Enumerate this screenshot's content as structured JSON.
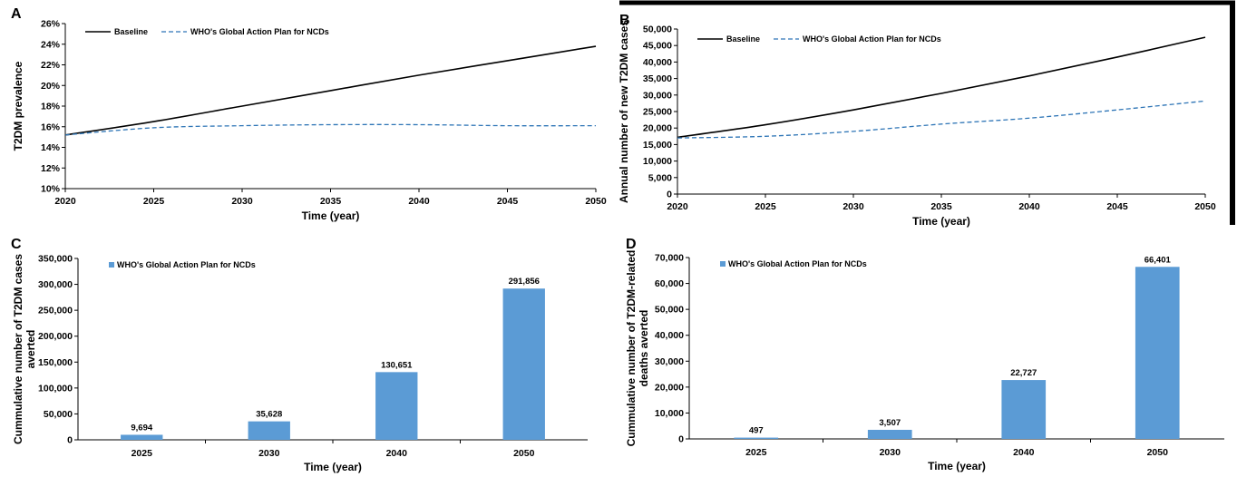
{
  "colors": {
    "baseline": "#000000",
    "who": "#2e75b6",
    "bar": "#5b9bd5"
  },
  "chart_data": [
    {
      "id": "A",
      "type": "line",
      "panel_label": "A",
      "xlabel": "Time (year)",
      "ylabel": "T2DM prevalence",
      "xlim": [
        2020,
        2050
      ],
      "ylim": [
        0.1,
        0.26
      ],
      "x_ticks": [
        "2020",
        "2025",
        "2030",
        "2035",
        "2040",
        "2045",
        "2050"
      ],
      "y_ticks": [
        "10%",
        "12%",
        "14%",
        "16%",
        "18%",
        "20%",
        "22%",
        "24%",
        "26%"
      ],
      "legend": [
        "Baseline",
        "WHO's Global Action Plan for NCDs"
      ],
      "legend_position": "top-left",
      "series": [
        {
          "name": "Baseline",
          "style": "solid",
          "x": [
            2020,
            2025,
            2030,
            2035,
            2040,
            2045,
            2050
          ],
          "y": [
            0.152,
            0.165,
            0.18,
            0.195,
            0.21,
            0.224,
            0.238
          ]
        },
        {
          "name": "WHO's Global Action Plan for NCDs",
          "style": "dashed",
          "x": [
            2020,
            2025,
            2030,
            2035,
            2040,
            2045,
            2050
          ],
          "y": [
            0.152,
            0.159,
            0.161,
            0.162,
            0.162,
            0.161,
            0.161
          ]
        }
      ]
    },
    {
      "id": "B",
      "type": "line",
      "panel_label": "B",
      "xlabel": "Time (year)",
      "ylabel": "Annual number of new T2DM cases",
      "xlim": [
        2020,
        2050
      ],
      "ylim": [
        0,
        50000
      ],
      "x_ticks": [
        "2020",
        "2025",
        "2030",
        "2035",
        "2040",
        "2045",
        "2050"
      ],
      "y_ticks": [
        "0",
        "5,000",
        "10,000",
        "15,000",
        "20,000",
        "25,000",
        "30,000",
        "35,000",
        "40,000",
        "45,000",
        "50,000"
      ],
      "legend": [
        "Baseline",
        "WHO's Global Action Plan for NCDs"
      ],
      "legend_position": "top-left",
      "series": [
        {
          "name": "Baseline",
          "style": "solid",
          "x": [
            2020,
            2025,
            2030,
            2035,
            2040,
            2045,
            2050
          ],
          "y": [
            17200,
            21000,
            25500,
            30500,
            35800,
            41500,
            47500
          ]
        },
        {
          "name": "WHO's Global Action Plan for NCDs",
          "style": "dashed",
          "x": [
            2020,
            2025,
            2030,
            2035,
            2040,
            2045,
            2050
          ],
          "y": [
            17000,
            17500,
            19000,
            21200,
            23000,
            25500,
            28200
          ]
        }
      ]
    },
    {
      "id": "C",
      "type": "bar",
      "panel_label": "C",
      "xlabel": "Time (year)",
      "ylabel_lines": [
        "Cummulative number of T2DM cases",
        "averted"
      ],
      "ylim": [
        0,
        350000
      ],
      "y_ticks": [
        "0",
        "50,000",
        "100,000",
        "150,000",
        "200,000",
        "250,000",
        "300,000",
        "350,000"
      ],
      "categories": [
        "2025",
        "2030",
        "2040",
        "2050"
      ],
      "legend": [
        "WHO's Global Action Plan for NCDs"
      ],
      "legend_position": "top-left",
      "series": [
        {
          "name": "WHO's Global Action Plan for NCDs",
          "values": [
            9694,
            35628,
            130651,
            291856
          ],
          "labels": [
            "9,694",
            "35,628",
            "130,651",
            "291,856"
          ]
        }
      ]
    },
    {
      "id": "D",
      "type": "bar",
      "panel_label": "D",
      "xlabel": "Time (year)",
      "ylabel_lines": [
        "Cummulative number  of T2DM-related",
        "deaths averted"
      ],
      "ylim": [
        0,
        70000
      ],
      "y_ticks": [
        "0",
        "10,000",
        "20,000",
        "30,000",
        "40,000",
        "50,000",
        "60,000",
        "70,000"
      ],
      "categories": [
        "2025",
        "2030",
        "2040",
        "2050"
      ],
      "legend": [
        "WHO's Global Action Plan for NCDs"
      ],
      "legend_position": "top-left",
      "series": [
        {
          "name": "WHO's Global Action Plan for NCDs",
          "values": [
            497,
            3507,
            22727,
            66401
          ],
          "labels": [
            "497",
            "3,507",
            "22,727",
            "66,401"
          ]
        }
      ]
    }
  ]
}
